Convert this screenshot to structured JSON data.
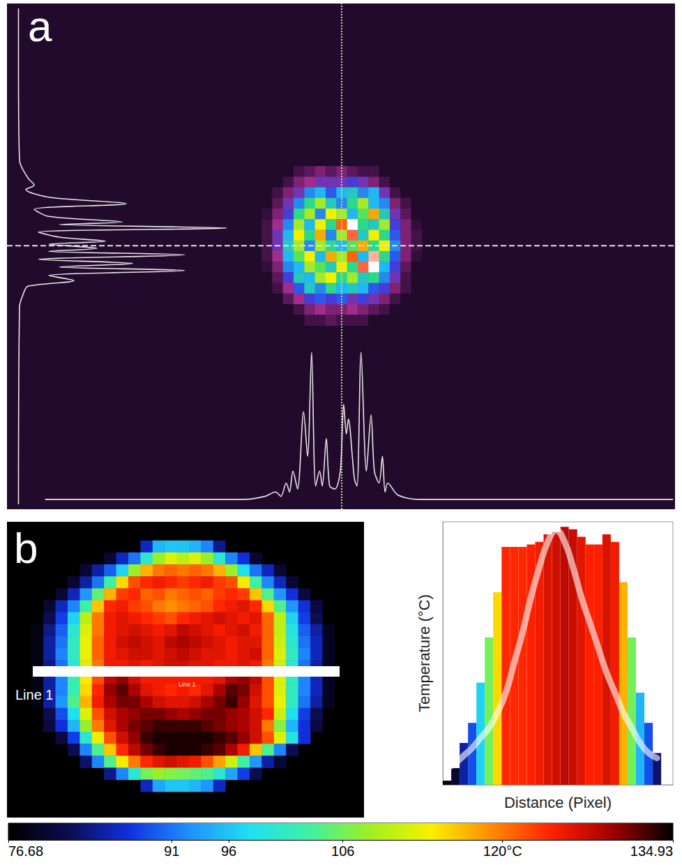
{
  "chart_data": [
    {
      "type": "heatmap",
      "title": "a",
      "tick_labels": false,
      "xlim": [
        0,
        100
      ],
      "ylim": [
        0,
        100
      ],
      "crosshair": [
        50.1,
        52.1
      ],
      "intensity_range": [
        0,
        1
      ],
      "x": [
        38.9,
        40.5,
        42.1,
        43.7,
        45.3,
        46.9,
        48.5,
        50.1,
        51.7,
        53.3,
        54.9,
        56.5,
        58.1,
        59.7,
        61.3
      ],
      "y": [
        66.8,
        64.7,
        62.6,
        60.5,
        58.4,
        56.3,
        54.2,
        52.1,
        50.0,
        47.9,
        45.8,
        43.7,
        41.6,
        39.5,
        37.4
      ],
      "cells": [
        [
          0,
          0,
          0,
          0.1,
          0.15,
          0.2,
          0.15,
          0.2,
          0.15,
          0.1,
          0.1,
          0,
          0,
          0,
          0
        ],
        [
          0,
          0,
          0.1,
          0.2,
          0.25,
          0.3,
          0.3,
          0.3,
          0.35,
          0.3,
          0.2,
          0.1,
          0,
          0,
          0
        ],
        [
          0,
          0.1,
          0.2,
          0.3,
          0.45,
          0.5,
          0.4,
          0.5,
          0.55,
          0.45,
          0.5,
          0.3,
          0.1,
          0,
          0
        ],
        [
          0,
          0.15,
          0.3,
          0.45,
          0.6,
          0.7,
          0.55,
          0.45,
          0.6,
          0.7,
          0.5,
          0.45,
          0.2,
          0.1,
          0
        ],
        [
          0.05,
          0.2,
          0.35,
          0.6,
          0.7,
          0.45,
          0.75,
          0.7,
          0.5,
          0.65,
          0.8,
          0.55,
          0.3,
          0.15,
          0
        ],
        [
          0.1,
          0.25,
          0.45,
          0.7,
          0.5,
          0.75,
          0.6,
          0.85,
          1,
          0.6,
          0.55,
          0.7,
          0.35,
          0.2,
          0.05
        ],
        [
          0.1,
          0.3,
          0.5,
          0.75,
          0.6,
          0.8,
          0.45,
          0.7,
          0.9,
          0.55,
          0.75,
          0.6,
          0.4,
          0.2,
          0.1
        ],
        [
          0.1,
          0.3,
          0.55,
          0.7,
          0.45,
          0.7,
          0.6,
          0.5,
          0.65,
          0.8,
          0.6,
          0.75,
          0.45,
          0.2,
          0.1
        ],
        [
          0.1,
          0.25,
          0.5,
          0.65,
          0.75,
          0.5,
          0.8,
          0.7,
          0.85,
          0.5,
          0.95,
          0.6,
          0.4,
          0.2,
          0.05
        ],
        [
          0.05,
          0.2,
          0.45,
          0.5,
          0.7,
          0.65,
          0.55,
          0.75,
          0.6,
          0.9,
          1,
          0.5,
          0.35,
          0.15,
          0
        ],
        [
          0,
          0.15,
          0.35,
          0.55,
          0.5,
          0.7,
          0.75,
          0.6,
          0.7,
          0.55,
          0.6,
          0.45,
          0.3,
          0.1,
          0
        ],
        [
          0,
          0.1,
          0.25,
          0.4,
          0.55,
          0.45,
          0.6,
          0.5,
          0.55,
          0.5,
          0.4,
          0.35,
          0.2,
          0.1,
          0
        ],
        [
          0,
          0,
          0.15,
          0.25,
          0.35,
          0.4,
          0.35,
          0.4,
          0.3,
          0.35,
          0.3,
          0.2,
          0.1,
          0,
          0
        ],
        [
          0,
          0,
          0,
          0.1,
          0.2,
          0.25,
          0.2,
          0.2,
          0.25,
          0.2,
          0.15,
          0.1,
          0,
          0,
          0
        ],
        [
          0,
          0,
          0,
          0,
          0.1,
          0.1,
          0.15,
          0.1,
          0.1,
          0.1,
          0,
          0,
          0,
          0,
          0
        ]
      ]
    },
    {
      "type": "line",
      "tick_labels": false,
      "xlim": [
        0,
        100
      ],
      "ylim": [
        0,
        1
      ],
      "x": [
        5.7,
        35.5,
        38.6,
        40.2,
        41.0,
        41.8,
        42.3,
        42.8,
        43.5,
        44.4,
        45.0,
        45.6,
        46.2,
        46.8,
        47.2,
        47.8,
        48.3,
        49.1,
        49.9,
        50.4,
        50.8,
        51.1,
        52.0,
        52.4,
        53.0,
        53.8,
        54.5,
        55.0,
        55.7,
        56.2,
        56.6,
        57.0,
        58.5,
        61.6,
        99.7
      ],
      "values": [
        0.01,
        0.01,
        0.03,
        0.06,
        0.03,
        0.12,
        0.06,
        0.2,
        0.08,
        0.6,
        0.3,
        1.0,
        0.1,
        0.2,
        0.1,
        0.42,
        0.1,
        0.08,
        0.2,
        0.65,
        0.45,
        0.55,
        0.15,
        0.1,
        1.0,
        0.2,
        0.58,
        0.2,
        0.12,
        0.3,
        0.06,
        0.12,
        0.04,
        0.01,
        0.01
      ]
    },
    {
      "type": "line",
      "tick_labels": false,
      "xlim": [
        0,
        1
      ],
      "ylim": [
        0,
        100
      ],
      "y": [
        99.0,
        86.9,
        69.0,
        65.5,
        64.1,
        63.2,
        61.7,
        60.4,
        59.3,
        57.9,
        56.8,
        56.3,
        55.6,
        54.8,
        53.8,
        53.0,
        52.4,
        51.6,
        51.0,
        50.3,
        49.4,
        48.6,
        47.9,
        47.2,
        46.2,
        45.2,
        44.1,
        42.8,
        40.0,
        1.0
      ],
      "values": [
        0.005,
        0.005,
        0.01,
        0.05,
        0.08,
        0.04,
        0.15,
        0.52,
        0.08,
        0.15,
        0.5,
        0.2,
        1.0,
        0.1,
        0.2,
        0.42,
        0.15,
        0.38,
        0.15,
        0.8,
        0.1,
        0.55,
        0.2,
        0.8,
        0.15,
        0.27,
        0.05,
        0.03,
        0.01,
        0.005
      ]
    },
    {
      "type": "heatmap",
      "title": "b",
      "annotation": "Line 1",
      "tick_labels": false,
      "colorbar_range": [
        76.68,
        134.93
      ],
      "colorbar_ticks": [
        76.68,
        91,
        96,
        106,
        {
          "value": 120,
          "label": "120°C"
        },
        134.93
      ],
      "cells": [
        [
          null,
          null,
          null,
          null,
          null,
          null,
          null,
          null,
          null,
          86,
          95,
          96,
          96,
          95,
          92,
          84,
          null,
          null,
          null,
          null,
          null,
          null,
          null,
          null,
          null
        ],
        [
          null,
          null,
          null,
          null,
          null,
          null,
          80,
          86,
          91,
          100,
          108,
          112,
          110,
          112,
          108,
          100,
          92,
          87,
          80,
          null,
          null,
          null,
          null,
          null,
          null
        ],
        [
          null,
          null,
          null,
          null,
          80,
          85,
          90,
          97,
          108,
          117,
          120,
          121,
          120,
          121,
          120,
          117,
          108,
          98,
          91,
          86,
          80,
          null,
          null,
          null,
          null
        ],
        [
          null,
          null,
          null,
          80,
          85,
          91,
          103,
          115,
          122,
          124,
          125,
          124,
          123,
          124,
          125,
          123,
          122,
          114,
          103,
          92,
          86,
          80,
          null,
          null,
          null
        ],
        [
          null,
          null,
          80,
          86,
          93,
          105,
          117,
          123,
          124,
          121,
          122,
          120,
          121,
          122,
          121,
          123,
          124,
          123,
          116,
          104,
          93,
          87,
          81,
          null,
          null
        ],
        [
          null,
          80,
          86,
          92,
          103,
          116,
          124,
          125,
          123,
          122,
          120,
          119,
          120,
          121,
          122,
          124,
          125,
          126,
          124,
          115,
          104,
          93,
          87,
          81,
          null
        ],
        [
          null,
          82,
          88,
          97,
          110,
          120,
          125,
          126,
          125,
          124,
          123,
          122,
          124,
          125,
          126,
          127,
          126,
          125,
          126,
          121,
          110,
          97,
          88,
          82,
          null
        ],
        [
          78,
          84,
          90,
          100,
          112,
          120,
          125,
          126,
          127,
          126,
          125,
          126,
          128,
          127,
          126,
          125,
          126,
          127,
          125,
          121,
          110,
          99,
          90,
          85,
          79
        ],
        [
          78,
          85,
          91,
          101,
          113,
          121,
          125,
          127,
          128,
          127,
          126,
          128,
          129,
          128,
          127,
          126,
          125,
          126,
          126,
          121,
          111,
          100,
          91,
          86,
          79
        ],
        [
          78,
          85,
          92,
          101,
          113,
          121,
          125,
          126,
          127,
          127,
          126,
          127,
          128,
          127,
          126,
          126,
          125,
          126,
          127,
          121,
          112,
          101,
          92,
          86,
          79
        ],
        [
          78,
          84,
          91,
          100,
          112,
          120,
          125,
          125,
          126,
          125,
          126,
          127,
          127,
          126,
          126,
          125,
          125,
          126,
          125,
          120,
          111,
          100,
          91,
          85,
          79
        ],
        [
          78,
          85,
          92,
          102,
          114,
          122,
          128,
          130,
          127,
          125,
          125,
          125,
          125,
          125,
          125,
          126,
          129,
          130,
          128,
          122,
          112,
          101,
          92,
          86,
          79
        ],
        [
          78,
          85,
          92,
          102,
          115,
          124,
          130,
          132,
          129,
          126,
          125,
          124,
          125,
          124,
          126,
          129,
          132,
          131,
          127,
          122,
          112,
          101,
          92,
          86,
          79
        ],
        [
          78,
          85,
          93,
          104,
          117,
          125,
          129,
          131,
          131,
          129,
          127,
          126,
          126,
          127,
          129,
          131,
          133,
          130,
          126,
          122,
          113,
          101,
          91,
          85,
          79
        ],
        [
          null,
          82,
          89,
          98,
          112,
          122,
          127,
          129,
          130,
          131,
          131,
          130,
          129,
          130,
          131,
          131,
          130,
          129,
          127,
          124,
          111,
          98,
          88,
          82,
          null
        ],
        [
          null,
          81,
          87,
          95,
          108,
          120,
          126,
          129,
          131,
          132,
          133,
          133,
          133,
          133,
          132,
          131,
          130,
          129,
          127,
          120,
          107,
          95,
          87,
          81,
          null
        ],
        [
          null,
          null,
          81,
          88,
          100,
          113,
          122,
          127,
          130,
          133,
          134,
          134,
          134,
          134,
          134,
          133,
          132,
          130,
          127,
          122,
          112,
          99,
          87,
          null,
          null
        ],
        [
          null,
          null,
          null,
          82,
          92,
          104,
          116,
          124,
          128,
          131,
          133,
          134,
          134,
          134,
          133,
          132,
          129,
          125,
          116,
          104,
          92,
          82,
          null,
          null,
          null
        ],
        [
          null,
          null,
          null,
          null,
          83,
          92,
          104,
          114,
          120,
          124,
          126,
          127,
          126,
          125,
          122,
          118,
          111,
          103,
          93,
          85,
          80,
          null,
          null,
          null,
          null
        ],
        [
          null,
          null,
          null,
          null,
          null,
          null,
          84,
          92,
          100,
          106,
          108,
          107,
          106,
          105,
          104,
          100,
          94,
          88,
          82,
          null,
          null,
          null,
          null,
          null,
          null
        ],
        [
          null,
          null,
          null,
          null,
          null,
          null,
          null,
          null,
          null,
          86,
          94,
          96,
          96,
          95,
          93,
          86,
          null,
          null,
          null,
          null,
          null,
          null,
          null,
          null,
          null
        ]
      ]
    },
    {
      "type": "bar",
      "tick_labels": false,
      "xlabel": "Distance (Pixel)",
      "ylabel": "Temperature (°C)",
      "xlim": [
        0.5,
        27.9
      ],
      "ylim": [
        76.68,
        129
      ],
      "x": [
        1,
        2,
        3,
        4,
        5,
        6,
        7,
        8,
        9,
        10,
        11,
        12,
        13,
        14,
        15,
        16,
        17,
        18,
        19,
        20,
        21,
        22,
        23,
        24,
        25,
        26
      ],
      "values": [
        77.5,
        80,
        85,
        89,
        97,
        106,
        115,
        124,
        124,
        124,
        124.5,
        125,
        126.5,
        127,
        128,
        127.5,
        126,
        124.5,
        124.5,
        126.5,
        125,
        117,
        106,
        95,
        89,
        83
      ],
      "curve": [
        80,
        81,
        82.5,
        84,
        86,
        88,
        91,
        95,
        101,
        107,
        114,
        120,
        125,
        127.3,
        125,
        120,
        114,
        109,
        104,
        99,
        95,
        91,
        88,
        85,
        83,
        82
      ]
    }
  ]
}
